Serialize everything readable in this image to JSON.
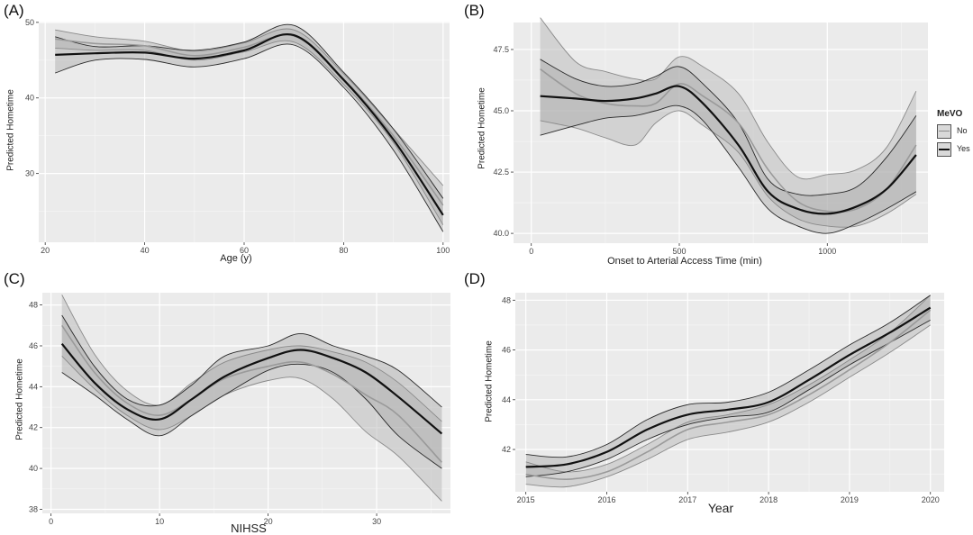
{
  "panels": [
    {
      "letter": "(A)",
      "xlabel": "Age (y)",
      "ylabel": "Predicted Hometime"
    },
    {
      "letter": "(B)",
      "xlabel": "Onset to Arterial Access Time (min)",
      "ylabel": "Predicted Hometime"
    },
    {
      "letter": "(C)",
      "xlabel": "NIHSS",
      "ylabel": "Predicted Hometime"
    },
    {
      "letter": "(D)",
      "xlabel": "Year",
      "ylabel": "Predicted Hometime"
    }
  ],
  "legend": {
    "title": "MeVO",
    "items": [
      {
        "label": "No"
      },
      {
        "label": "Yes"
      }
    ]
  },
  "chart_data": [
    {
      "type": "line",
      "title": "",
      "xlabel": "Age (y)",
      "ylabel": "Predicted Hometime",
      "xlim": [
        18.7,
        101.3
      ],
      "ylim": [
        20.9,
        50.1
      ],
      "xticks": [
        20,
        40,
        60,
        80,
        100
      ],
      "yticks": [
        30,
        40,
        50
      ],
      "grid": true,
      "legend": "none",
      "series": [
        {
          "name": "No",
          "x": [
            22,
            30,
            40,
            50,
            60,
            70,
            80,
            90,
            100
          ],
          "y": [
            47.8,
            47.2,
            46.9,
            45.6,
            46.7,
            48.2,
            42.5,
            35.0,
            25.8
          ],
          "lower": [
            46.6,
            46.3,
            46.3,
            45.0,
            46.1,
            47.4,
            41.8,
            34.1,
            23.2
          ],
          "upper": [
            49.0,
            48.1,
            47.5,
            46.2,
            47.3,
            49.0,
            43.2,
            35.9,
            28.4
          ]
        },
        {
          "name": "Yes",
          "x": [
            22,
            30,
            40,
            50,
            60,
            70,
            80,
            90,
            100
          ],
          "y": [
            45.7,
            45.9,
            46.0,
            45.2,
            46.3,
            48.3,
            42.4,
            34.5,
            24.5
          ],
          "lower": [
            43.3,
            45.0,
            45.1,
            44.1,
            45.2,
            47.0,
            41.4,
            33.1,
            22.3
          ],
          "upper": [
            48.1,
            46.8,
            46.9,
            46.3,
            47.4,
            49.6,
            43.4,
            35.9,
            26.7
          ]
        }
      ]
    },
    {
      "type": "line",
      "title": "",
      "xlabel": "Onset to Arterial Access Time (min)",
      "ylabel": "Predicted Hometime",
      "xlim": [
        -60,
        1340
      ],
      "ylim": [
        39.6,
        48.6
      ],
      "xticks": [
        0,
        500,
        1000
      ],
      "yticks": [
        40.0,
        42.5,
        45.0,
        47.5
      ],
      "grid": true,
      "legend": "right",
      "series": [
        {
          "name": "No",
          "x": [
            30,
            150,
            250,
            350,
            420,
            500,
            580,
            700,
            800,
            900,
            1000,
            1100,
            1200,
            1300
          ],
          "y": [
            46.7,
            45.7,
            45.3,
            45.2,
            45.3,
            46.1,
            45.6,
            44.5,
            42.6,
            41.3,
            40.9,
            41.0,
            41.8,
            43.6
          ],
          "lower": [
            44.6,
            44.3,
            43.9,
            43.6,
            44.5,
            45.0,
            44.4,
            43.3,
            41.5,
            40.6,
            40.3,
            40.3,
            40.8,
            41.6
          ],
          "upper": [
            48.8,
            47.0,
            46.6,
            46.3,
            46.3,
            47.2,
            46.8,
            45.7,
            43.7,
            42.3,
            42.4,
            42.6,
            43.5,
            45.8
          ]
        },
        {
          "name": "Yes",
          "x": [
            30,
            150,
            250,
            350,
            420,
            500,
            580,
            700,
            800,
            900,
            1000,
            1100,
            1200,
            1300
          ],
          "y": [
            45.6,
            45.5,
            45.4,
            45.5,
            45.7,
            46.0,
            45.3,
            43.6,
            41.7,
            41.0,
            40.8,
            41.1,
            41.8,
            43.2
          ],
          "lower": [
            44.0,
            44.4,
            44.7,
            44.8,
            45.0,
            45.2,
            44.6,
            42.7,
            41.0,
            40.3,
            40.0,
            40.4,
            41.0,
            41.7
          ],
          "upper": [
            47.1,
            46.3,
            46.0,
            46.1,
            46.4,
            46.8,
            46.1,
            44.5,
            42.2,
            41.6,
            41.6,
            41.9,
            43.1,
            44.8
          ]
        }
      ]
    },
    {
      "type": "line",
      "title": "",
      "xlabel": "NIHSS",
      "ylabel": "Predicted Hometime",
      "xlim": [
        -0.8,
        36.8
      ],
      "ylim": [
        37.8,
        48.6
      ],
      "xticks": [
        0,
        10,
        20,
        30
      ],
      "yticks": [
        38,
        40,
        42,
        44,
        46,
        48
      ],
      "grid": true,
      "legend": "none",
      "series": [
        {
          "name": "No",
          "x": [
            1,
            4,
            7,
            10,
            13,
            16,
            20,
            23,
            26,
            29,
            32,
            36
          ],
          "y": [
            47.0,
            44.7,
            43.2,
            42.6,
            43.4,
            44.4,
            45.0,
            45.2,
            44.6,
            43.6,
            42.6,
            40.3
          ],
          "lower": [
            45.5,
            43.9,
            42.6,
            41.9,
            42.6,
            43.6,
            44.3,
            44.4,
            43.4,
            41.8,
            40.6,
            38.4
          ],
          "upper": [
            48.5,
            45.6,
            43.8,
            43.1,
            44.2,
            45.2,
            45.8,
            46.0,
            45.7,
            45.2,
            44.2,
            42.3
          ]
        },
        {
          "name": "Yes",
          "x": [
            1,
            4,
            7,
            10,
            13,
            16,
            20,
            23,
            26,
            29,
            32,
            36
          ],
          "y": [
            46.1,
            44.2,
            42.9,
            42.4,
            43.4,
            44.5,
            45.4,
            45.8,
            45.4,
            44.7,
            43.5,
            41.7
          ],
          "lower": [
            44.7,
            43.6,
            42.4,
            41.6,
            42.6,
            43.6,
            44.8,
            45.1,
            44.7,
            43.4,
            41.6,
            40.0
          ],
          "upper": [
            47.5,
            45.0,
            43.4,
            43.1,
            44.1,
            45.5,
            46.0,
            46.6,
            46.0,
            45.5,
            44.8,
            43.0
          ]
        }
      ]
    },
    {
      "type": "line",
      "title": "",
      "xlabel": "Year",
      "ylabel": "Predicted Hometime",
      "xlim": [
        2014.87,
        2020.17
      ],
      "ylim": [
        40.3,
        48.3
      ],
      "xticks": [
        2015,
        2016,
        2017,
        2018,
        2019,
        2020
      ],
      "yticks": [
        42,
        44,
        46,
        48
      ],
      "grid": true,
      "legend": "none",
      "series": [
        {
          "name": "No",
          "x": [
            2015,
            2015.5,
            2016,
            2016.5,
            2017,
            2017.5,
            2018,
            2018.5,
            2019,
            2019.5,
            2020
          ],
          "y": [
            41.0,
            40.8,
            41.1,
            41.9,
            42.8,
            43.1,
            43.4,
            44.2,
            45.2,
            46.3,
            47.6
          ],
          "lower": [
            40.6,
            40.5,
            40.9,
            41.6,
            42.4,
            42.7,
            43.1,
            43.9,
            44.9,
            45.9,
            47.0
          ],
          "upper": [
            41.5,
            41.1,
            41.4,
            42.2,
            43.1,
            43.4,
            43.8,
            44.6,
            45.6,
            46.7,
            48.2
          ]
        },
        {
          "name": "Yes",
          "x": [
            2015,
            2015.5,
            2016,
            2016.5,
            2017,
            2017.5,
            2018,
            2018.5,
            2019,
            2019.5,
            2020
          ],
          "y": [
            41.3,
            41.4,
            41.9,
            42.8,
            43.4,
            43.6,
            43.9,
            44.8,
            45.8,
            46.7,
            47.7
          ],
          "lower": [
            40.9,
            41.1,
            41.6,
            42.4,
            43.0,
            43.3,
            43.5,
            44.4,
            45.4,
            46.3,
            47.2
          ],
          "upper": [
            41.8,
            41.7,
            42.2,
            43.2,
            43.8,
            43.9,
            44.3,
            45.2,
            46.2,
            47.1,
            48.2
          ]
        }
      ]
    }
  ]
}
